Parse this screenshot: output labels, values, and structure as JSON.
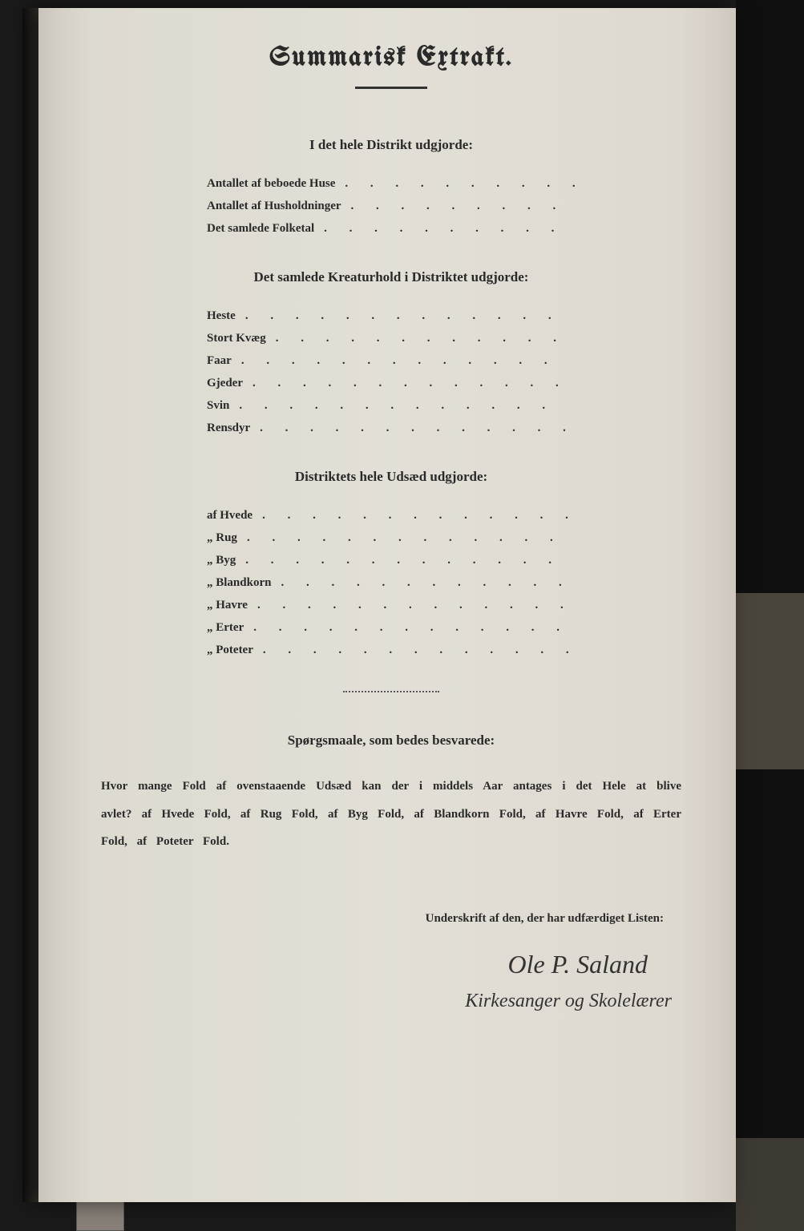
{
  "title": "Summarisk Extrakt.",
  "section1": {
    "heading": "I det hele Distrikt udgjorde:",
    "items": [
      "Antallet af beboede Huse",
      "Antallet af Husholdninger",
      "Det samlede Folketal"
    ]
  },
  "section2": {
    "heading": "Det samlede Kreaturhold i Distriktet udgjorde:",
    "items": [
      "Heste",
      "Stort Kvæg",
      "Faar",
      "Gjeder",
      "Svin",
      "Rensdyr"
    ]
  },
  "section3": {
    "heading": "Distriktets hele Udsæd udgjorde:",
    "items": [
      "af Hvede",
      "„ Rug",
      "„ Byg",
      "„ Blandkorn",
      "„ Havre",
      "„ Erter",
      "„ Poteter"
    ]
  },
  "questions": {
    "heading": "Spørgsmaale, som bedes besvarede:",
    "text": "Hvor mange Fold af ovenstaaende Udsæd kan der i middels Aar antages i det Hele at blive avlet?  af Hvede          Fold, af Rug          Fold, af Byg          Fold, af Blandkorn          Fold, af Havre          Fold, af Erter          Fold, af Poteter          Fold."
  },
  "signature_label": "Underskrift af den, der har udfærdiget Listen:",
  "signature_name": "Ole P. Saland",
  "signature_title": "Kirkesanger og Skolelærer",
  "colors": {
    "paper": "#dddad0",
    "ink": "#2a2a2a",
    "background": "#1a1a1a"
  },
  "typography": {
    "title_fontsize": 34,
    "heading_fontsize": 17,
    "body_fontsize": 15,
    "signature_fontsize": 32
  },
  "dot_leader": ". . . . . . . . . . . . ."
}
